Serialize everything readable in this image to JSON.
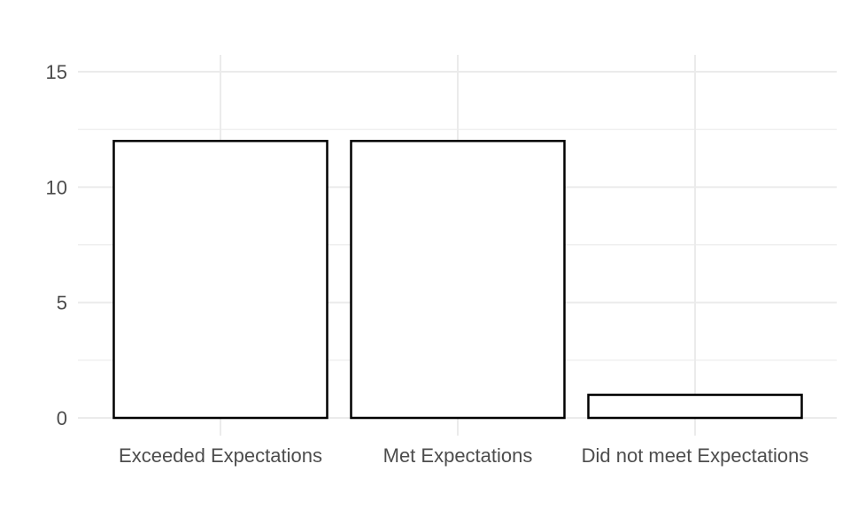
{
  "chart_data": {
    "type": "bar",
    "categories": [
      "Exceeded Expectations",
      "Met Expectations",
      "Did not meet Expectations"
    ],
    "values": [
      12,
      12,
      1
    ],
    "title": "",
    "xlabel": "",
    "ylabel": "",
    "ylim": [
      0,
      15
    ],
    "yticks": [
      0,
      5,
      10,
      15
    ],
    "grid": true,
    "colors": {
      "bar_fill": "#ffffff",
      "bar_stroke": "#000000",
      "grid": "#ebebeb",
      "text": "#4d4d4d"
    }
  }
}
